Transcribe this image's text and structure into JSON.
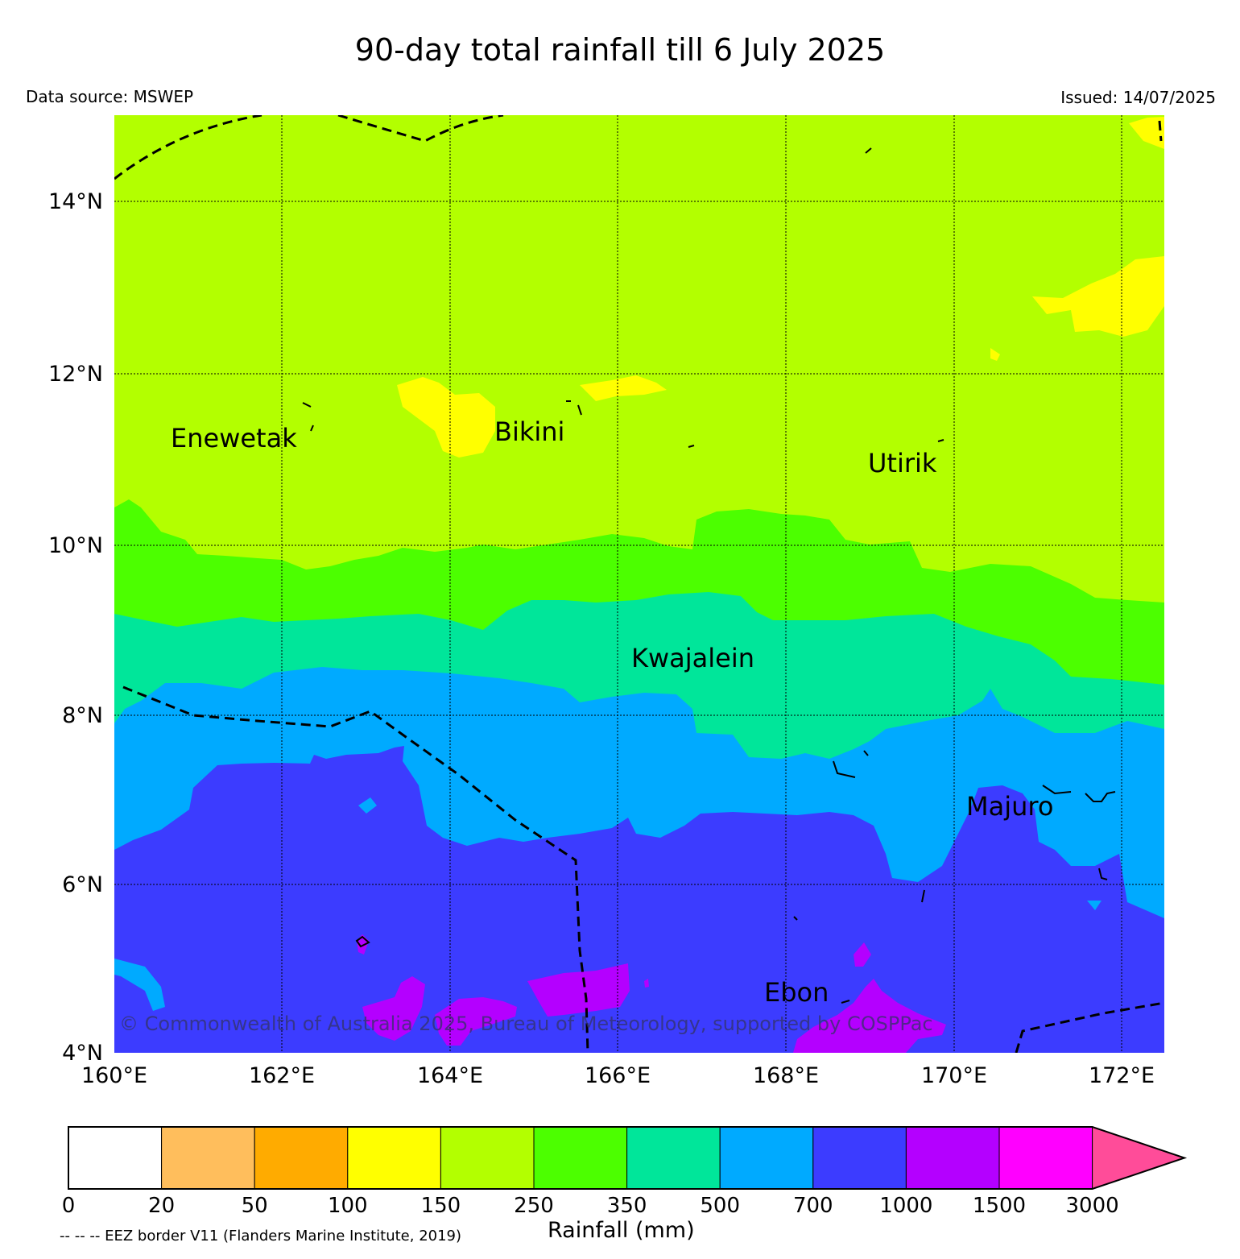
{
  "title": "90-day total rainfall till 6 July 2025",
  "data_source": "Data source: MSWEP",
  "issued": "Issued: 14/07/2025",
  "copyright": "© Commonwealth of Australia 2025, Bureau of Meteorology, supported by COSPPac",
  "eez_note": "-- -- -- EEZ border V11 (Flanders Marine Institute, 2019)",
  "axes": {
    "lon_labels": [
      "160°E",
      "162°E",
      "164°E",
      "166°E",
      "168°E",
      "170°E",
      "172°E"
    ],
    "lat_labels": [
      "14°N",
      "12°N",
      "10°N",
      "8°N",
      "6°N",
      "4°N"
    ],
    "lon_range": [
      160,
      172.5
    ],
    "lat_range": [
      4,
      15
    ]
  },
  "places": {
    "enewetak": "Enewetak",
    "bikini": "Bikini",
    "utirik": "Utirik",
    "kwajalein": "Kwajalein",
    "majuro": "Majuro",
    "ebon": "Ebon"
  },
  "legend": {
    "title": "Rainfall (mm)",
    "ticks": [
      "0",
      "20",
      "50",
      "100",
      "150",
      "250",
      "350",
      "500",
      "700",
      "1000",
      "1500",
      "3000"
    ],
    "colors": [
      "#ffffff",
      "#ffbe5c",
      "#ffab00",
      "#ffff00",
      "#b3ff00",
      "#4cff00",
      "#00e69a",
      "#00aaff",
      "#3c3cff",
      "#b400ff",
      "#ff00ff",
      "#ff4c99"
    ]
  }
}
